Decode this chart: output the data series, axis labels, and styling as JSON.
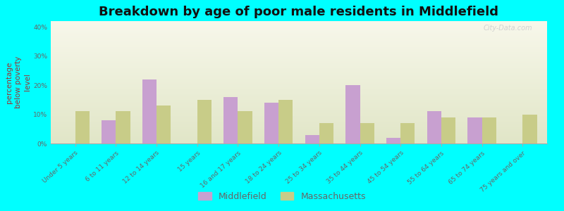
{
  "title": "Breakdown by age of poor male residents in Middlefield",
  "ylabel": "percentage\nbelow poverty\nlevel",
  "background_color": "#00FFFF",
  "categories": [
    "Under 5 years",
    "6 to 11 years",
    "12 to 14 years",
    "15 years",
    "16 and 17 years",
    "18 to 24 years",
    "25 to 34 years",
    "35 to 44 years",
    "45 to 54 years",
    "55 to 64 years",
    "65 to 74 years",
    "75 years and over"
  ],
  "middlefield_values": [
    0,
    8,
    22,
    0,
    16,
    14,
    3,
    20,
    2,
    11,
    9,
    0
  ],
  "massachusetts_values": [
    11,
    11,
    13,
    15,
    11,
    15,
    7,
    7,
    7,
    9,
    9,
    10
  ],
  "middlefield_color": "#c8a0d0",
  "massachusetts_color": "#c8cc88",
  "ylim": [
    0,
    42
  ],
  "yticks": [
    0,
    10,
    20,
    30,
    40
  ],
  "ytick_labels": [
    "0%",
    "10%",
    "20%",
    "30%",
    "40%"
  ],
  "bar_width": 0.35,
  "title_fontsize": 13,
  "tick_fontsize": 6.5,
  "ylabel_fontsize": 7.5,
  "legend_fontsize": 9,
  "watermark": "City-Data.com"
}
